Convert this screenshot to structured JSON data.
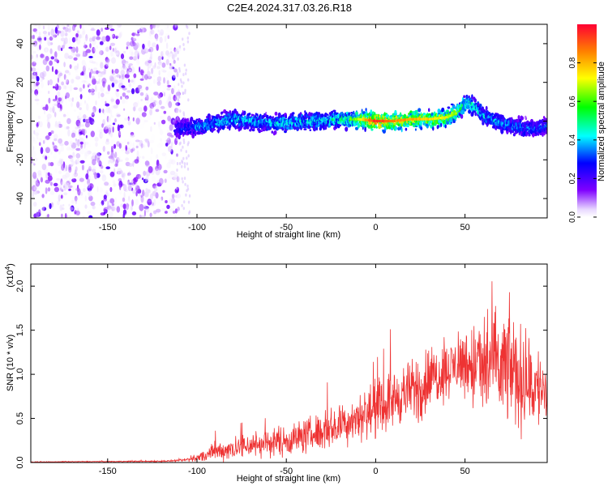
{
  "title": "C2E4.2024.317.03.26.R18",
  "chart_data": [
    {
      "type": "heatmap",
      "xlabel": "Height of straight line (km)",
      "ylabel": "Frequency (Hz)",
      "xlim": [
        -193,
        96
      ],
      "ylim": [
        -50,
        50
      ],
      "xticks": [
        -150,
        -100,
        -50,
        0,
        50
      ],
      "yticks": [
        -40,
        -20,
        0,
        20,
        40
      ],
      "colorbar": {
        "label": "Normalized spectral amplitude",
        "range": [
          0.0,
          1.0
        ],
        "ticks": [
          "0.0",
          "0.2",
          "0.4",
          "0.6",
          "0.8"
        ],
        "tick_values": [
          0.0,
          0.2,
          0.4,
          0.6,
          0.8
        ],
        "colormap": [
          "#ffffff",
          "#7f00ff",
          "#0000ff",
          "#00ffff",
          "#00ff00",
          "#ffff00",
          "#ff0000"
        ]
      },
      "noise_region": {
        "x_range": [
          -193,
          -112
        ],
        "y_range": [
          -50,
          50
        ],
        "amplitude": 0.2
      },
      "signal_ridge": {
        "x": [
          -112,
          -100,
          -90,
          -80,
          -70,
          -60,
          -50,
          -40,
          -30,
          -20,
          -10,
          0,
          10,
          20,
          30,
          40,
          45,
          50,
          55,
          60,
          70,
          80,
          90,
          96
        ],
        "frequency": [
          -4,
          -3,
          -1,
          1,
          0,
          -1,
          -1,
          0,
          0,
          1,
          1,
          0,
          0,
          1,
          1,
          2,
          4,
          9,
          8,
          3,
          -1,
          -3,
          -4,
          -2
        ],
        "peak_amplitude": [
          0.3,
          0.4,
          0.45,
          0.5,
          0.45,
          0.45,
          0.5,
          0.5,
          0.5,
          0.55,
          0.7,
          1.0,
          0.9,
          0.85,
          0.8,
          0.75,
          0.7,
          0.6,
          0.55,
          0.45,
          0.45,
          0.4,
          0.4,
          0.35
        ]
      }
    },
    {
      "type": "line",
      "xlabel": "Height of straight line (km)",
      "ylabel": "SNR (10 * v/v)",
      "scale_label_prefix": "(x10",
      "scale_label_exponent": "4",
      "scale_label_suffix": ")",
      "color": "#ee3333",
      "xlim": [
        -193,
        96
      ],
      "ylim": [
        0,
        2.25
      ],
      "xticks": [
        -150,
        -100,
        -50,
        0,
        50
      ],
      "yticks": [
        "0.0",
        "0.5",
        "1.0",
        "1.5",
        "2.0"
      ],
      "ytick_values": [
        0,
        0.5,
        1.0,
        1.5,
        2.0
      ],
      "series": [
        {
          "x": [
            -193,
            -180,
            -160,
            -140,
            -120,
            -110,
            -100,
            -90,
            -80,
            -70,
            -60,
            -50,
            -40,
            -30,
            -20,
            -10,
            0,
            10,
            20,
            25,
            30,
            35,
            40,
            45,
            50,
            55,
            60,
            65,
            70,
            75,
            80,
            85,
            90,
            96
          ],
          "values": [
            0.005,
            0.008,
            0.01,
            0.012,
            0.015,
            0.02,
            0.05,
            0.12,
            0.16,
            0.2,
            0.22,
            0.25,
            0.3,
            0.35,
            0.42,
            0.52,
            0.6,
            0.72,
            0.82,
            0.85,
            0.95,
            1.0,
            1.05,
            1.1,
            1.15,
            1.1,
            1.05,
            1.15,
            1.05,
            1.1,
            0.95,
            0.9,
            0.85,
            0.8
          ],
          "spread": [
            0.003,
            0.004,
            0.005,
            0.006,
            0.008,
            0.01,
            0.04,
            0.1,
            0.12,
            0.14,
            0.15,
            0.16,
            0.18,
            0.2,
            0.22,
            0.25,
            0.28,
            0.3,
            0.3,
            0.4,
            0.35,
            0.3,
            0.3,
            0.3,
            0.35,
            0.5,
            0.55,
            0.6,
            0.6,
            0.6,
            0.55,
            0.5,
            0.45,
            0.4
          ]
        }
      ]
    }
  ]
}
